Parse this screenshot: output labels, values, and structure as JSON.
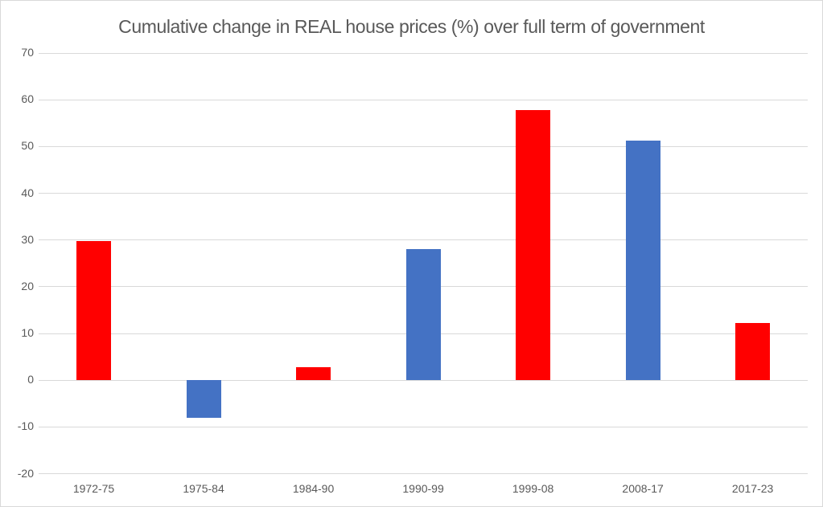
{
  "chart_data": {
    "type": "bar",
    "title": "Cumulative change in REAL house prices (%) over full term of government",
    "categories": [
      "1972-75",
      "1975-84",
      "1984-90",
      "1990-99",
      "1999-08",
      "2008-17",
      "2017-23"
    ],
    "values": [
      29.7,
      -8.1,
      2.8,
      28.0,
      57.8,
      51.3,
      12.2
    ],
    "bar_colors": [
      "#ff0000",
      "#4472c4",
      "#ff0000",
      "#4472c4",
      "#ff0000",
      "#4472c4",
      "#ff0000"
    ],
    "xlabel": "",
    "ylabel": "",
    "ylim": [
      -20,
      70
    ],
    "yticks": [
      70,
      60,
      50,
      40,
      30,
      20,
      10,
      0,
      -10,
      -20
    ],
    "grid": true,
    "legend": "none"
  },
  "colors": {
    "red_bar": "#ff0000",
    "blue_bar": "#4472c4",
    "gridline": "#d9d9d9",
    "text": "#595959",
    "border": "#d9d9d9",
    "background": "#ffffff"
  }
}
